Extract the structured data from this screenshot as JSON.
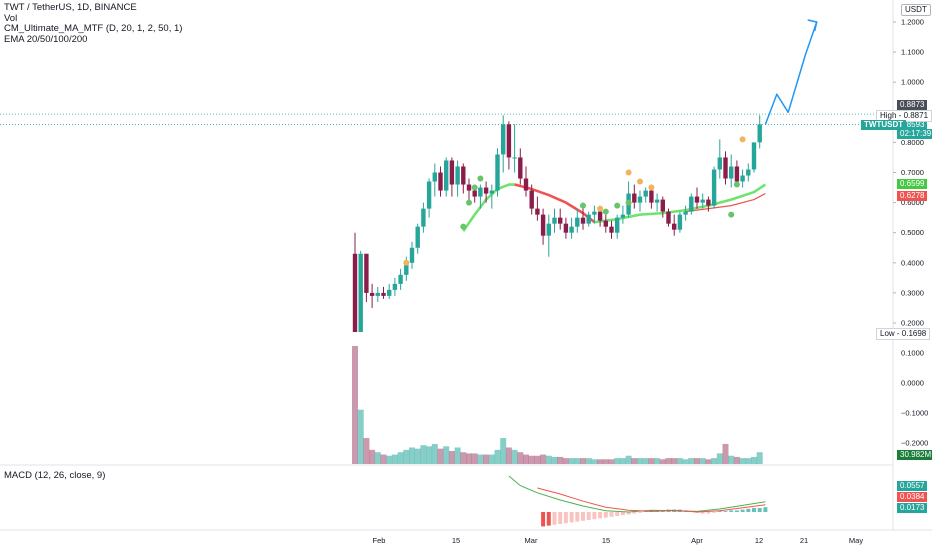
{
  "header": {
    "symbol_line": "TWT / TetherUS, 1D, BINANCE",
    "indicators": [
      "Vol",
      "CM_Ultimate_MA_MTF (D, 20, 1, 2, 50, 1)",
      "EMA 20/50/100/200"
    ]
  },
  "macd_label": "MACD (12, 26, close, 9)",
  "currency_badge": "USDT",
  "price_axis": {
    "ticks": [
      "1.2000",
      "1.1000",
      "1.0000",
      "0.9000",
      "0.8000",
      "0.7000",
      "0.6000",
      "0.5000",
      "0.4000",
      "0.3000",
      "0.2000"
    ],
    "range": [
      0.1698,
      1.2
    ]
  },
  "volume_axis": {
    "ticks": [
      "0.1000",
      "0.0000",
      "−0.1000",
      "−0.2000"
    ]
  },
  "time_axis": {
    "labels": [
      "Feb",
      "15",
      "Mar",
      "15",
      "Apr",
      "12",
      "21",
      "May"
    ]
  },
  "price_tags": {
    "high_label": "High",
    "high_value": "0.8871",
    "high_line": "0.8873",
    "symbol_tag": "TWTUSDT",
    "last_price": "0.8593",
    "countdown": "02:17:39",
    "ma_green": "0.6599",
    "ma_red": "0.6278",
    "low_label": "Low",
    "low_value": "0.1698",
    "volume_value": "30.982M",
    "macd_values": [
      "0.0557",
      "0.0384",
      "0.0173"
    ]
  },
  "colors": {
    "up": "#26a69a",
    "down": "#8b1d4a",
    "ma_green": "#6ee36e",
    "ma_red": "#ef5350",
    "arrow": "#2196f3",
    "dot_green": "#66c46b",
    "dot_orange": "#f0b45c"
  },
  "chart_data": {
    "type": "candlestick",
    "symbol": "TWT / TetherUS",
    "interval": "1D",
    "exchange": "BINANCE",
    "candles": [
      [
        0.43,
        0.5,
        0.17,
        0.17
      ],
      [
        0.17,
        0.44,
        0.17,
        0.43
      ],
      [
        0.43,
        0.43,
        0.27,
        0.3
      ],
      [
        0.3,
        0.33,
        0.25,
        0.29
      ],
      [
        0.29,
        0.32,
        0.27,
        0.3
      ],
      [
        0.3,
        0.32,
        0.28,
        0.29
      ],
      [
        0.29,
        0.33,
        0.28,
        0.31
      ],
      [
        0.31,
        0.35,
        0.29,
        0.33
      ],
      [
        0.33,
        0.38,
        0.31,
        0.36
      ],
      [
        0.36,
        0.42,
        0.34,
        0.4
      ],
      [
        0.4,
        0.47,
        0.38,
        0.45
      ],
      [
        0.45,
        0.53,
        0.43,
        0.52
      ],
      [
        0.52,
        0.6,
        0.5,
        0.58
      ],
      [
        0.58,
        0.68,
        0.55,
        0.67
      ],
      [
        0.67,
        0.73,
        0.62,
        0.7
      ],
      [
        0.7,
        0.72,
        0.62,
        0.64
      ],
      [
        0.64,
        0.75,
        0.62,
        0.74
      ],
      [
        0.74,
        0.75,
        0.62,
        0.66
      ],
      [
        0.66,
        0.74,
        0.62,
        0.72
      ],
      [
        0.72,
        0.73,
        0.63,
        0.66
      ],
      [
        0.66,
        0.68,
        0.6,
        0.64
      ],
      [
        0.64,
        0.66,
        0.6,
        0.62
      ],
      [
        0.62,
        0.66,
        0.58,
        0.65
      ],
      [
        0.65,
        0.67,
        0.6,
        0.63
      ],
      [
        0.63,
        0.66,
        0.58,
        0.64
      ],
      [
        0.64,
        0.78,
        0.62,
        0.76
      ],
      [
        0.76,
        0.89,
        0.7,
        0.86
      ],
      [
        0.86,
        0.87,
        0.71,
        0.75
      ],
      [
        0.75,
        0.86,
        0.7,
        0.75
      ],
      [
        0.75,
        0.78,
        0.66,
        0.68
      ],
      [
        0.68,
        0.72,
        0.62,
        0.64
      ],
      [
        0.64,
        0.66,
        0.56,
        0.58
      ],
      [
        0.58,
        0.62,
        0.54,
        0.56
      ],
      [
        0.56,
        0.58,
        0.46,
        0.49
      ],
      [
        0.49,
        0.56,
        0.42,
        0.53
      ],
      [
        0.53,
        0.58,
        0.5,
        0.55
      ],
      [
        0.55,
        0.58,
        0.51,
        0.53
      ],
      [
        0.53,
        0.55,
        0.48,
        0.5
      ],
      [
        0.5,
        0.55,
        0.48,
        0.52
      ],
      [
        0.52,
        0.58,
        0.5,
        0.55
      ],
      [
        0.55,
        0.6,
        0.51,
        0.53
      ],
      [
        0.53,
        0.57,
        0.52,
        0.56
      ],
      [
        0.56,
        0.59,
        0.53,
        0.57
      ],
      [
        0.57,
        0.58,
        0.52,
        0.54
      ],
      [
        0.54,
        0.56,
        0.5,
        0.52
      ],
      [
        0.52,
        0.54,
        0.48,
        0.5
      ],
      [
        0.5,
        0.56,
        0.48,
        0.55
      ],
      [
        0.55,
        0.59,
        0.53,
        0.56
      ],
      [
        0.56,
        0.67,
        0.55,
        0.63
      ],
      [
        0.63,
        0.66,
        0.58,
        0.6
      ],
      [
        0.6,
        0.64,
        0.57,
        0.62
      ],
      [
        0.62,
        0.65,
        0.6,
        0.64
      ],
      [
        0.64,
        0.66,
        0.58,
        0.6
      ],
      [
        0.6,
        0.63,
        0.57,
        0.61
      ],
      [
        0.61,
        0.62,
        0.55,
        0.57
      ],
      [
        0.57,
        0.58,
        0.52,
        0.53
      ],
      [
        0.53,
        0.56,
        0.49,
        0.51
      ],
      [
        0.51,
        0.57,
        0.5,
        0.56
      ],
      [
        0.56,
        0.59,
        0.54,
        0.57
      ],
      [
        0.57,
        0.63,
        0.56,
        0.62
      ],
      [
        0.62,
        0.65,
        0.58,
        0.6
      ],
      [
        0.6,
        0.63,
        0.58,
        0.61
      ],
      [
        0.61,
        0.62,
        0.57,
        0.59
      ],
      [
        0.59,
        0.72,
        0.58,
        0.71
      ],
      [
        0.71,
        0.81,
        0.68,
        0.75
      ],
      [
        0.75,
        0.77,
        0.66,
        0.68
      ],
      [
        0.68,
        0.76,
        0.65,
        0.72
      ],
      [
        0.72,
        0.74,
        0.66,
        0.67
      ],
      [
        0.67,
        0.71,
        0.65,
        0.69
      ],
      [
        0.69,
        0.73,
        0.67,
        0.71
      ],
      [
        0.71,
        0.8,
        0.7,
        0.8
      ],
      [
        0.8,
        0.89,
        0.78,
        0.86
      ]
    ],
    "ma_green": [
      [
        19,
        0.505
      ],
      [
        21,
        0.56
      ],
      [
        23,
        0.61
      ],
      [
        25,
        0.645
      ],
      [
        27,
        0.66
      ],
      [
        28,
        0.66
      ]
    ],
    "ma_red": [
      [
        28,
        0.66
      ],
      [
        31,
        0.645
      ],
      [
        34,
        0.625
      ],
      [
        37,
        0.6
      ],
      [
        40,
        0.565
      ],
      [
        42,
        0.535
      ]
    ],
    "ma_green2": [
      [
        42,
        0.535
      ],
      [
        46,
        0.545
      ],
      [
        50,
        0.56
      ],
      [
        54,
        0.565
      ],
      [
        58,
        0.575
      ],
      [
        62,
        0.59
      ],
      [
        66,
        0.61
      ],
      [
        70,
        0.635
      ],
      [
        72,
        0.66
      ]
    ],
    "ema_red": [
      [
        58,
        0.57
      ],
      [
        62,
        0.58
      ],
      [
        66,
        0.59
      ],
      [
        70,
        0.61
      ],
      [
        72,
        0.63
      ]
    ],
    "dots_green": [
      [
        19,
        0.52
      ],
      [
        20,
        0.6
      ],
      [
        21,
        0.65
      ],
      [
        22,
        0.68
      ],
      [
        40,
        0.59
      ],
      [
        44,
        0.57
      ],
      [
        46,
        0.59
      ],
      [
        48,
        0.6
      ],
      [
        66,
        0.56
      ],
      [
        67,
        0.66
      ]
    ],
    "dots_orange": [
      [
        9,
        0.4
      ],
      [
        43,
        0.58
      ],
      [
        48,
        0.7
      ],
      [
        50,
        0.67
      ],
      [
        52,
        0.65
      ],
      [
        68,
        0.81
      ]
    ],
    "projection": [
      [
        72,
        0.86
      ],
      [
        74,
        0.96
      ],
      [
        76,
        0.9
      ],
      [
        79,
        1.09
      ],
      [
        81,
        1.2
      ]
    ],
    "volume": [
      1.0,
      0.46,
      0.22,
      0.12,
      0.1,
      0.08,
      0.07,
      0.08,
      0.1,
      0.12,
      0.14,
      0.13,
      0.16,
      0.15,
      0.17,
      0.13,
      0.15,
      0.11,
      0.14,
      0.1,
      0.09,
      0.09,
      0.08,
      0.08,
      0.08,
      0.12,
      0.22,
      0.14,
      0.12,
      0.1,
      0.08,
      0.07,
      0.07,
      0.08,
      0.07,
      0.06,
      0.06,
      0.05,
      0.05,
      0.05,
      0.05,
      0.05,
      0.04,
      0.04,
      0.04,
      0.04,
      0.05,
      0.05,
      0.07,
      0.05,
      0.05,
      0.05,
      0.05,
      0.05,
      0.04,
      0.05,
      0.05,
      0.05,
      0.04,
      0.05,
      0.05,
      0.05,
      0.04,
      0.05,
      0.09,
      0.17,
      0.07,
      0.06,
      0.05,
      0.05,
      0.06,
      0.1
    ],
    "macd_hist": [
      -0.9,
      -0.85,
      -0.8,
      -0.75,
      -0.7,
      -0.65,
      -0.6,
      -0.55,
      -0.5,
      -0.45,
      -0.4,
      -0.35,
      -0.3,
      -0.25,
      -0.2,
      -0.15,
      -0.1,
      -0.05,
      0.05,
      0.1,
      0.1,
      0.1,
      0.15,
      0.15,
      0.15,
      0.1,
      0.05,
      -0.05,
      -0.1,
      -0.1,
      -0.05,
      0.05,
      0.05,
      0.1,
      0.1,
      0.15,
      0.2,
      0.25,
      0.25,
      0.3
    ],
    "macd_line": [
      [
        27,
        3.0
      ],
      [
        29,
        2.2
      ],
      [
        32,
        1.6
      ],
      [
        36,
        1.0
      ],
      [
        40,
        0.5
      ],
      [
        44,
        0.1
      ],
      [
        48,
        0.0
      ],
      [
        52,
        0.15
      ],
      [
        56,
        0.1
      ],
      [
        60,
        0.05
      ],
      [
        64,
        0.25
      ],
      [
        68,
        0.55
      ],
      [
        72,
        0.85
      ]
    ],
    "signal_line": [
      [
        32,
        2.0
      ],
      [
        36,
        1.5
      ],
      [
        40,
        0.9
      ],
      [
        44,
        0.4
      ],
      [
        48,
        0.15
      ],
      [
        52,
        0.05
      ],
      [
        56,
        0.15
      ],
      [
        60,
        0.0
      ],
      [
        64,
        0.1
      ],
      [
        68,
        0.35
      ],
      [
        72,
        0.6
      ]
    ]
  }
}
